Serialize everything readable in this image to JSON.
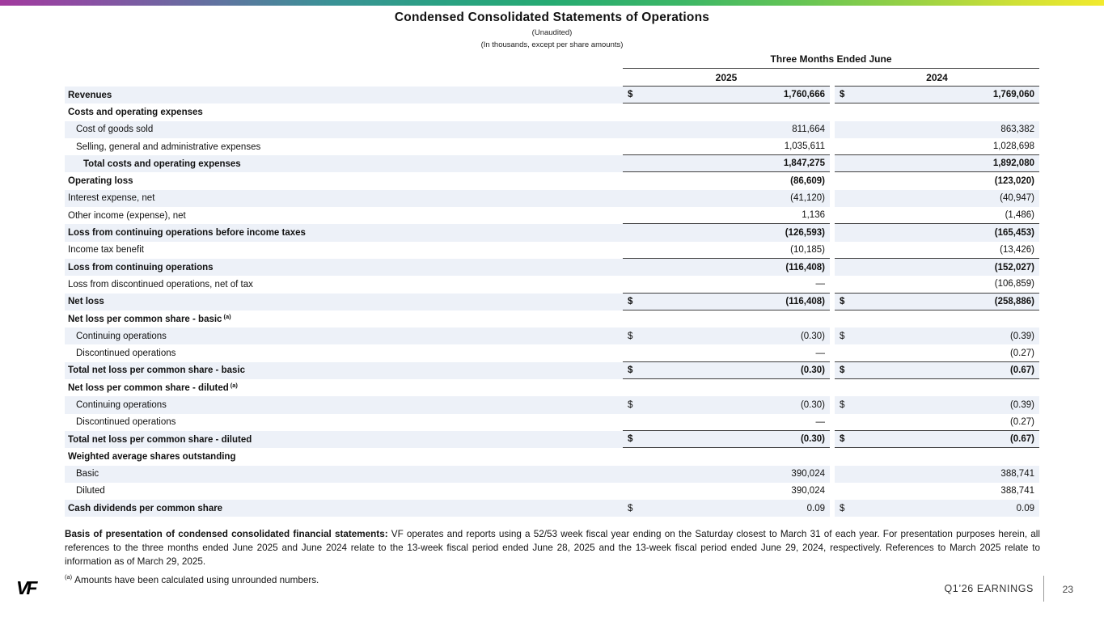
{
  "slide": {
    "title": "Condensed Consolidated Statements of Operations",
    "subtitle_unaudited": "(Unaudited)",
    "subtitle_units": "(In thousands, except per share amounts)"
  },
  "table": {
    "period_header": "Three Months Ended June",
    "col_headers": [
      "2025",
      "2024"
    ],
    "rows": [
      {
        "label": "Revenues",
        "indent": 0,
        "bold": true,
        "vbold": true,
        "cur": true,
        "v2025": "1,760,666",
        "v2024": "1,769,060",
        "shade": true,
        "rule": true
      },
      {
        "label": "Costs and operating expenses",
        "indent": 0,
        "bold": true,
        "v2025": "",
        "v2024": "",
        "shade": false
      },
      {
        "label": "Cost of goods sold",
        "indent": 1,
        "v2025": "811,664",
        "v2024": "863,382",
        "shade": true
      },
      {
        "label": "Selling, general and administrative expenses",
        "indent": 1,
        "v2025": "1,035,611",
        "v2024": "1,028,698",
        "shade": false,
        "rule": true
      },
      {
        "label": "Total costs and operating expenses",
        "indent": 2,
        "bold": true,
        "vbold": true,
        "v2025": "1,847,275",
        "v2024": "1,892,080",
        "shade": true,
        "rule": true
      },
      {
        "label": "Operating loss",
        "indent": 0,
        "bold": true,
        "vbold": true,
        "v2025": "(86,609)",
        "v2024": "(123,020)",
        "shade": false
      },
      {
        "label": "Interest expense, net",
        "indent": 0,
        "v2025": "(41,120)",
        "v2024": "(40,947)",
        "shade": true
      },
      {
        "label": "Other income (expense), net",
        "indent": 0,
        "v2025": "1,136",
        "v2024": "(1,486)",
        "shade": false,
        "rule": true
      },
      {
        "label": "Loss from continuing operations before income taxes",
        "indent": 0,
        "bold": true,
        "vbold": true,
        "v2025": "(126,593)",
        "v2024": "(165,453)",
        "shade": true
      },
      {
        "label": "Income tax benefit",
        "indent": 0,
        "v2025": "(10,185)",
        "v2024": "(13,426)",
        "shade": false,
        "rule": true
      },
      {
        "label": "Loss from continuing operations",
        "indent": 0,
        "bold": true,
        "vbold": true,
        "v2025": "(116,408)",
        "v2024": "(152,027)",
        "shade": true
      },
      {
        "label": "Loss from discontinued operations, net of tax",
        "indent": 0,
        "v2025": "—",
        "v2024": "(106,859)",
        "shade": false,
        "rule": true
      },
      {
        "label": "Net loss",
        "indent": 0,
        "bold": true,
        "vbold": true,
        "cur": true,
        "v2025": "(116,408)",
        "v2024": "(258,886)",
        "shade": true,
        "rule": true
      },
      {
        "label": "Net loss per common share - basic",
        "sup": "(a)",
        "indent": 0,
        "bold": true,
        "v2025": "",
        "v2024": "",
        "shade": false
      },
      {
        "label": "Continuing operations",
        "indent": 1,
        "cur": true,
        "v2025": "(0.30)",
        "v2024": "(0.39)",
        "shade": true
      },
      {
        "label": "Discontinued operations",
        "indent": 1,
        "v2025": "—",
        "v2024": "(0.27)",
        "shade": false,
        "rule": true
      },
      {
        "label": "Total net loss per common share - basic",
        "indent": 0,
        "bold": true,
        "vbold": true,
        "cur": true,
        "v2025": "(0.30)",
        "v2024": "(0.67)",
        "shade": true,
        "rule": true
      },
      {
        "label": "Net loss per common share - diluted",
        "sup": "(a)",
        "indent": 0,
        "bold": true,
        "v2025": "",
        "v2024": "",
        "shade": false
      },
      {
        "label": "Continuing operations",
        "indent": 1,
        "cur": true,
        "v2025": "(0.30)",
        "v2024": "(0.39)",
        "shade": true
      },
      {
        "label": "Discontinued operations",
        "indent": 1,
        "v2025": "—",
        "v2024": "(0.27)",
        "shade": false,
        "rule": true
      },
      {
        "label": "Total net loss per common share - diluted",
        "indent": 0,
        "bold": true,
        "vbold": true,
        "cur": true,
        "v2025": "(0.30)",
        "v2024": "(0.67)",
        "shade": true,
        "rule": true
      },
      {
        "label": "Weighted average shares outstanding",
        "indent": 0,
        "bold": true,
        "v2025": "",
        "v2024": "",
        "shade": false
      },
      {
        "label": "Basic",
        "indent": 1,
        "v2025": "390,024",
        "v2024": "388,741",
        "shade": true
      },
      {
        "label": "Diluted",
        "indent": 1,
        "v2025": "390,024",
        "v2024": "388,741",
        "shade": false
      },
      {
        "label": "Cash dividends per common share",
        "indent": 0,
        "bold": true,
        "cur": true,
        "v2025": "0.09",
        "v2024": "0.09",
        "shade": true
      }
    ]
  },
  "footnotes": {
    "basis_lead": "Basis of presentation of condensed consolidated financial statements:",
    "basis_text": " VF operates and reports using a 52/53 week fiscal year ending on the Saturday closest to March 31 of each year. For presentation purposes herein, all references to the three months ended June 2025 and June 2024 relate to the 13-week fiscal period ended June 28, 2025 and the 13-week fiscal period ended June 29, 2024, respectively. References to March 2025 relate to information as of March 29, 2025.",
    "marker_a": "(a)",
    "note_a": "Amounts have been calculated using unrounded numbers."
  },
  "footer": {
    "logo_text": "VF",
    "earnings_label": "Q1’26 EARNINGS",
    "page_number": "23"
  },
  "colors": {
    "row_shade": "#edf1f8",
    "rule_line": "#404040",
    "gradient_stops": [
      "#a23a9e 0%",
      "#8a4fa3 8%",
      "#5f74a0 20%",
      "#3a9296 30%",
      "#2aa183 40%",
      "#26ab72 50%",
      "#3db766 62%",
      "#63c455 72%",
      "#9ad244 83%",
      "#cfe036 92%",
      "#f2ea2d 100%"
    ]
  }
}
